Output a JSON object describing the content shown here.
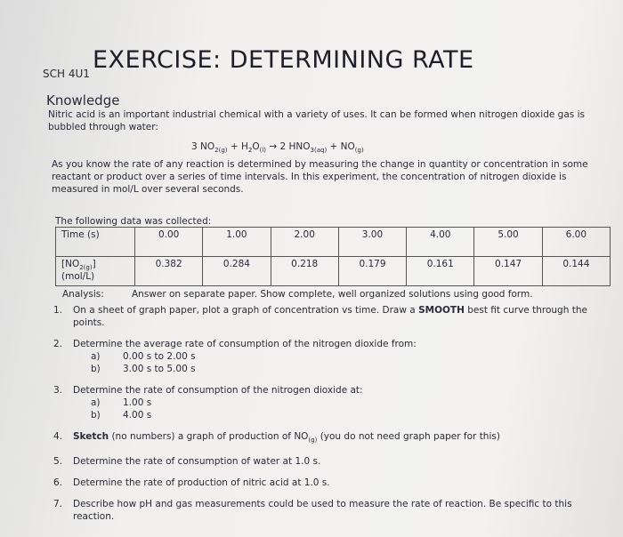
{
  "header": {
    "course": "SCH 4U1",
    "title": "EXERCISE: DETERMINING RATE"
  },
  "section": "Knowledge",
  "intro": "Nitric acid is an important industrial chemical with a variety of uses. It can be formed when nitrogen dioxide gas is bubbled through water:",
  "equation": [
    {
      "text": "3 NO"
    },
    {
      "text": "2(g)",
      "style": "sub"
    },
    {
      "text": " + H"
    },
    {
      "text": "2",
      "style": "sub"
    },
    {
      "text": "O"
    },
    {
      "text": "(l)",
      "style": "sub"
    },
    {
      "text": " → 2 HNO"
    },
    {
      "text": "3(aq)",
      "style": "sub"
    },
    {
      "text": " + NO"
    },
    {
      "text": "(g)",
      "style": "sub"
    }
  ],
  "paragraph": "As you know the rate of any reaction is determined by measuring the change in quantity or concentration in some reactant or product over a series of time intervals. In this experiment, the concentration of nitrogen dioxide is measured in mol/L over several seconds.",
  "collected": "The following data was collected:",
  "table": {
    "rows": [
      {
        "label": [
          {
            "text": "Time (s)"
          }
        ],
        "cells": [
          "0.00",
          "1.00",
          "2.00",
          "3.00",
          "4.00",
          "5.00",
          "6.00"
        ]
      },
      {
        "label": [
          {
            "text": "[NO"
          },
          {
            "text": "2(g)",
            "style": "sub"
          },
          {
            "text": "] (mol/L)"
          }
        ],
        "cells": [
          "0.382",
          "0.284",
          "0.218",
          "0.179",
          "0.161",
          "0.147",
          "0.144"
        ]
      }
    ]
  },
  "analysis": {
    "label": "Analysis:",
    "text": "Answer on separate paper. Show complete, well organized solutions using good form."
  },
  "items": [
    {
      "num": "1.",
      "text": [
        {
          "text": "On a sheet of graph paper, plot a graph of concentration vs time. Draw a "
        },
        {
          "text": "SMOOTH",
          "style": "bold"
        },
        {
          "text": " best fit curve through the points."
        }
      ]
    },
    {
      "num": "2.",
      "text": [
        {
          "text": "Determine the average rate of consumption of the nitrogen dioxide from:"
        }
      ],
      "parts": [
        {
          "letter": "a)",
          "text": "0.00 s to 2.00 s"
        },
        {
          "letter": "b)",
          "text": "3.00 s to 5.00 s"
        }
      ]
    },
    {
      "num": "3.",
      "text": [
        {
          "text": "Determine the rate of consumption of the nitrogen dioxide at:"
        }
      ],
      "parts": [
        {
          "letter": "a)",
          "text": "1.00 s"
        },
        {
          "letter": "b)",
          "text": "4.00 s"
        }
      ]
    },
    {
      "num": "4.",
      "text": [
        {
          "text": "Sketch",
          "style": "bold"
        },
        {
          "text": " (no numbers) a graph of production of NO"
        },
        {
          "text": "(g)",
          "style": "sub"
        },
        {
          "text": " (you do not need graph paper for this)"
        }
      ]
    },
    {
      "num": "5.",
      "text": [
        {
          "text": "Determine the rate of consumption of water at 1.0 s."
        }
      ]
    },
    {
      "num": "6.",
      "text": [
        {
          "text": "Determine the rate of production of nitric acid at 1.0 s."
        }
      ]
    },
    {
      "num": "7.",
      "text": [
        {
          "text": "Describe how pH and gas measurements could be used to measure the rate of reaction. Be specific to this reaction."
        }
      ]
    }
  ]
}
